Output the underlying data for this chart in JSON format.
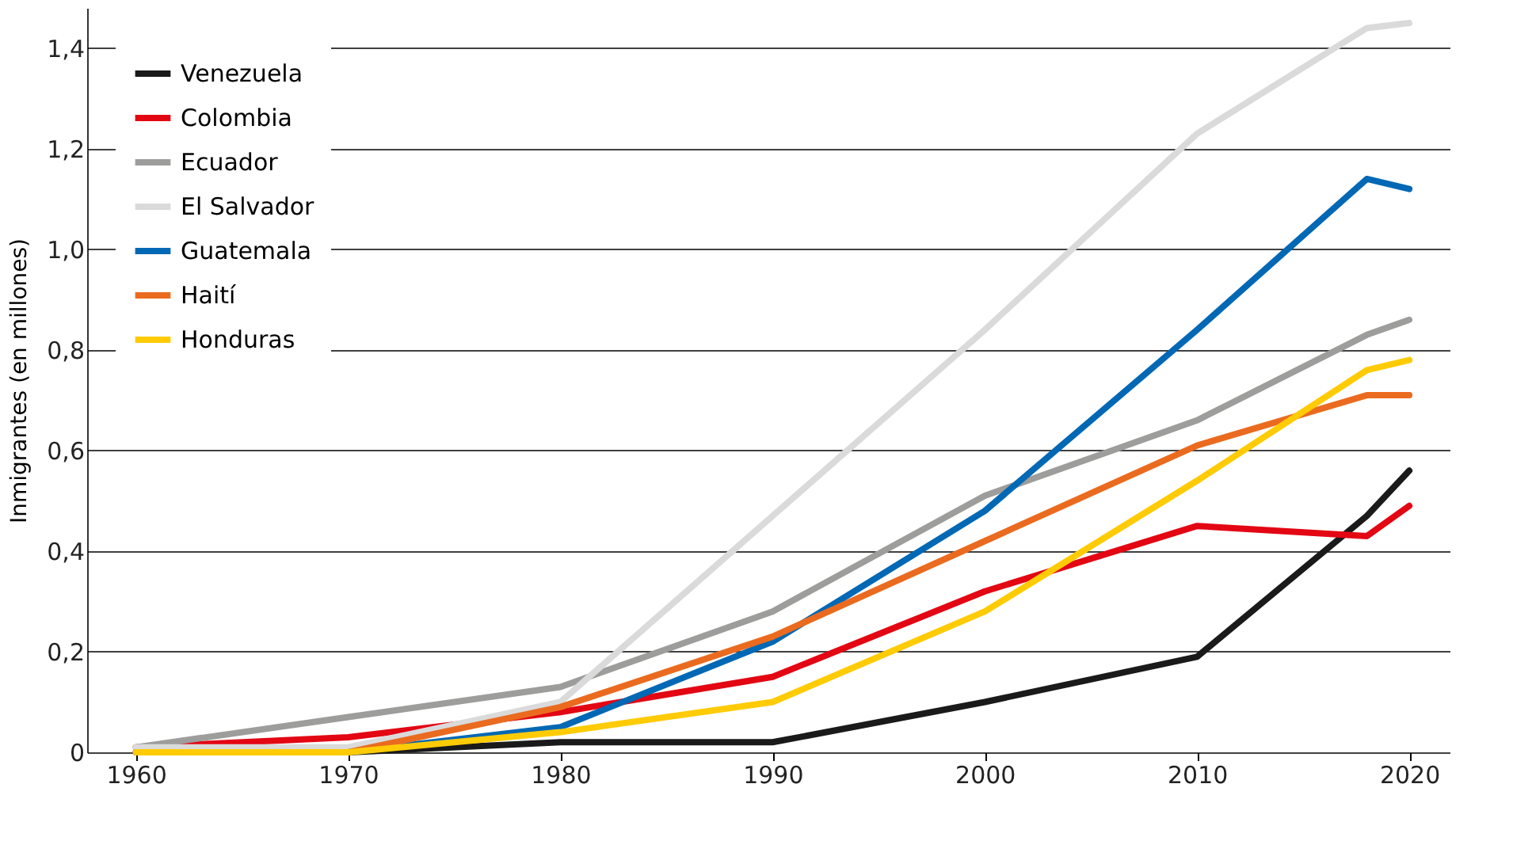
{
  "chart_data": {
    "type": "line",
    "ylabel": "Inmigrantes (en millones)",
    "x": [
      1960,
      1970,
      1980,
      1990,
      2000,
      2010,
      2018,
      2020
    ],
    "series": [
      {
        "name": "Venezuela",
        "color": "#1a1a1a",
        "values": [
          0,
          0,
          0.02,
          0.02,
          0.1,
          0.19,
          0.47,
          0.56
        ]
      },
      {
        "name": "Colombia",
        "color": "#e30613",
        "values": [
          0.01,
          0.03,
          0.08,
          0.15,
          0.32,
          0.45,
          0.43,
          0.49
        ]
      },
      {
        "name": "Ecuador",
        "color": "#9d9d9c",
        "values": [
          0.01,
          0.07,
          0.13,
          0.28,
          0.51,
          0.66,
          0.83,
          0.86
        ]
      },
      {
        "name": "El Salvador",
        "color": "#dadada",
        "values": [
          0.01,
          0.01,
          0.1,
          0.47,
          0.84,
          1.23,
          1.44,
          1.45
        ]
      },
      {
        "name": "Guatemala",
        "color": "#0068b4",
        "values": [
          0,
          0,
          0.05,
          0.22,
          0.48,
          0.84,
          1.14,
          1.12
        ]
      },
      {
        "name": "Haití",
        "color": "#ea6b1f",
        "values": [
          0,
          0,
          0.09,
          0.23,
          0.42,
          0.61,
          0.71,
          0.71
        ]
      },
      {
        "name": "Honduras",
        "color": "#ffcb05",
        "values": [
          0,
          0,
          0.04,
          0.1,
          0.28,
          0.54,
          0.76,
          0.78
        ]
      }
    ],
    "xlim": [
      1957.7,
      2021.9
    ],
    "xticks": [
      1960,
      1970,
      1980,
      1990,
      2000,
      2010,
      2020
    ],
    "ylim": [
      0,
      1.48
    ],
    "yticks": [
      0,
      {
        "value": 0.2,
        "label": "0,2"
      },
      {
        "value": 0.4,
        "label": "0,4"
      },
      {
        "value": 0.6,
        "label": "0,6"
      },
      {
        "value": 0.8,
        "label": "0,8"
      },
      {
        "value": 1.0,
        "label": "1,0"
      },
      {
        "value": 1.2,
        "label": "1,2"
      },
      {
        "value": 1.4,
        "label": "1,4"
      }
    ],
    "grid": "y",
    "legend": "top left",
    "line_style": "solid",
    "marker": "none"
  }
}
